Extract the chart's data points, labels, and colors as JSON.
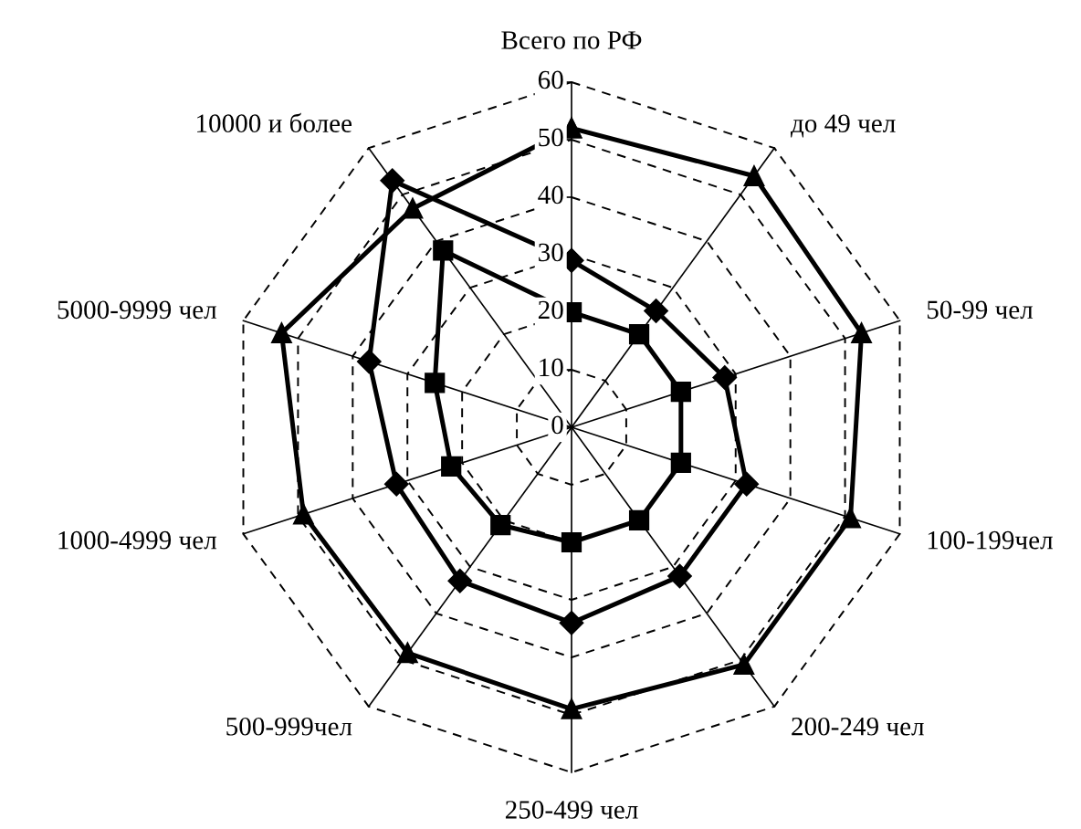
{
  "chart_data": {
    "type": "radar",
    "categories": [
      "Всего по РФ",
      "до 49 чел",
      "50-99 чел",
      "100-199чел",
      "200-249 чел",
      "250-499 чел",
      "500-999чел",
      "1000-4999 чел",
      "5000-9999 чел",
      "10000 и более"
    ],
    "series": [
      {
        "color": "#000000",
        "marker": "triangle",
        "values": [
          52,
          54,
          53,
          51,
          51,
          49,
          48.5,
          49,
          53,
          47
        ]
      },
      {
        "color": "#000000",
        "marker": "diamond",
        "values": [
          29,
          25,
          28,
          32,
          32,
          34,
          33,
          32,
          37,
          53
        ]
      },
      {
        "color": "#000000",
        "marker": "square",
        "values": [
          20,
          20,
          20,
          20,
          20,
          20,
          21,
          22,
          25,
          38
        ]
      }
    ],
    "ylim": [
      0,
      60
    ],
    "yticks": [
      0,
      10,
      20,
      30,
      40,
      50,
      60
    ],
    "grid": true,
    "line_style": "solid"
  }
}
